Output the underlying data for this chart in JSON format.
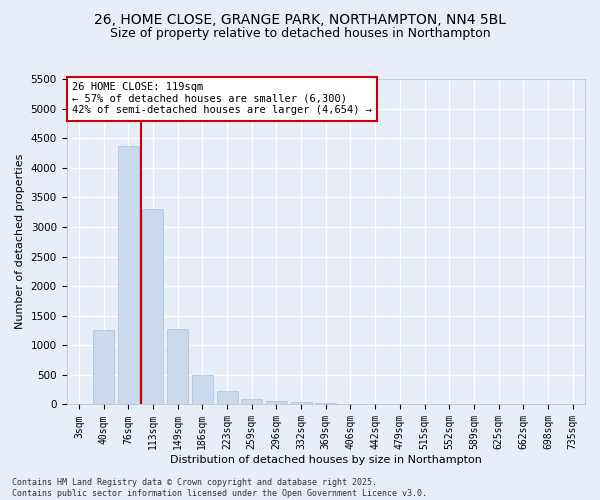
{
  "title_line1": "26, HOME CLOSE, GRANGE PARK, NORTHAMPTON, NN4 5BL",
  "title_line2": "Size of property relative to detached houses in Northampton",
  "xlabel": "Distribution of detached houses by size in Northampton",
  "ylabel": "Number of detached properties",
  "footer_line1": "Contains HM Land Registry data © Crown copyright and database right 2025.",
  "footer_line2": "Contains public sector information licensed under the Open Government Licence v3.0.",
  "categories": [
    "3sqm",
    "40sqm",
    "76sqm",
    "113sqm",
    "149sqm",
    "186sqm",
    "223sqm",
    "259sqm",
    "296sqm",
    "332sqm",
    "369sqm",
    "406sqm",
    "442sqm",
    "479sqm",
    "515sqm",
    "552sqm",
    "589sqm",
    "625sqm",
    "662sqm",
    "698sqm",
    "735sqm"
  ],
  "values": [
    0,
    1260,
    4370,
    3300,
    1280,
    500,
    220,
    90,
    55,
    40,
    30,
    0,
    0,
    0,
    0,
    0,
    0,
    0,
    0,
    0,
    0
  ],
  "bar_color": "#c9d9ee",
  "bar_edge_color": "#a8c0de",
  "vline_x": 3,
  "vline_color": "#cc0000",
  "annotation_text": "26 HOME CLOSE: 119sqm\n← 57% of detached houses are smaller (6,300)\n42% of semi-detached houses are larger (4,654) →",
  "annotation_box_color": "#cc0000",
  "ylim": [
    0,
    5500
  ],
  "yticks": [
    0,
    500,
    1000,
    1500,
    2000,
    2500,
    3000,
    3500,
    4000,
    4500,
    5000,
    5500
  ],
  "bg_color": "#e8eef8",
  "plot_bg_color": "#e8eef8",
  "grid_color": "#ffffff",
  "title_fontsize": 10,
  "subtitle_fontsize": 9,
  "tick_fontsize": 7,
  "label_fontsize": 8,
  "annotation_fontsize": 7.5,
  "footer_fontsize": 6
}
